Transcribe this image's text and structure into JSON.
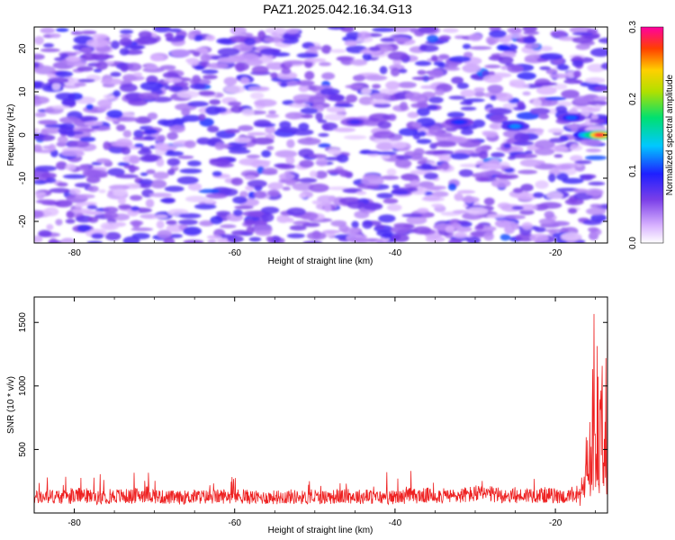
{
  "title": "PAZ1.2025.042.16.34.G13",
  "colors": {
    "snr_line": "#ee2222",
    "background": "#ffffff"
  },
  "chart_data": [
    {
      "type": "heatmap",
      "xlabel": "Height of straight line (km)",
      "ylabel": "Frequency (Hz)",
      "xlim": [
        -85,
        -13.5
      ],
      "ylim": [
        -25,
        25
      ],
      "xticks": [
        "-80",
        "-60",
        "-40",
        "-20"
      ],
      "yticks": [
        "-20",
        "-10",
        "0",
        "10",
        "20"
      ],
      "colorbar": {
        "label": "Normalized spectral amplitude",
        "range": [
          0,
          0.3
        ],
        "ticks": [
          "0.0",
          "0.1",
          "0.2",
          "0.3"
        ],
        "colormap": "rainbow (white-purple-blue-cyan-green-yellow-red-magenta)"
      },
      "features": [
        {
          "height_km": -45,
          "freq_hz": 3,
          "amplitude": 0.08
        },
        {
          "height_km": -32,
          "freq_hz": 3,
          "amplitude": 0.1
        },
        {
          "height_km": -25,
          "freq_hz": 2,
          "amplitude": 0.12
        },
        {
          "height_km": -18,
          "freq_hz": 4,
          "amplitude": 0.11
        },
        {
          "height_km": -16,
          "freq_hz": 0,
          "amplitude": 0.15
        },
        {
          "height_km": -14.5,
          "freq_hz": 0,
          "amplitude": 0.28
        }
      ]
    },
    {
      "type": "line",
      "xlabel": "Height of straight line (km)",
      "ylabel": "SNR (10 * v/v)",
      "xlim": [
        -85,
        -13.5
      ],
      "ylim": [
        0,
        1700
      ],
      "xticks": [
        "-80",
        "-60",
        "-40",
        "-20"
      ],
      "yticks": [
        "500",
        "1000",
        "1500"
      ],
      "series": [
        {
          "x": [
            -85,
            -83,
            -81,
            -79,
            -77,
            -75,
            -73,
            -71,
            -69,
            -67,
            -65,
            -63,
            -61,
            -59,
            -57,
            -55,
            -53,
            -51,
            -49,
            -47,
            -45,
            -43,
            -41,
            -39,
            -37,
            -35,
            -33,
            -31,
            -29,
            -27,
            -25,
            -23,
            -21,
            -19,
            -17,
            -16.5,
            -16,
            -15.8,
            -15.5,
            -15.2,
            -15,
            -14.8,
            -14.5,
            -14.2,
            -14,
            -13.8,
            -13.5
          ],
          "y": [
            120,
            130,
            125,
            140,
            120,
            135,
            130,
            150,
            125,
            120,
            130,
            125,
            135,
            130,
            120,
            125,
            130,
            120,
            125,
            130,
            130,
            125,
            120,
            130,
            135,
            140,
            130,
            145,
            150,
            140,
            130,
            145,
            140,
            130,
            120,
            300,
            650,
            800,
            400,
            1450,
            500,
            1650,
            1000,
            1200,
            300,
            1000,
            1600
          ]
        }
      ]
    }
  ]
}
